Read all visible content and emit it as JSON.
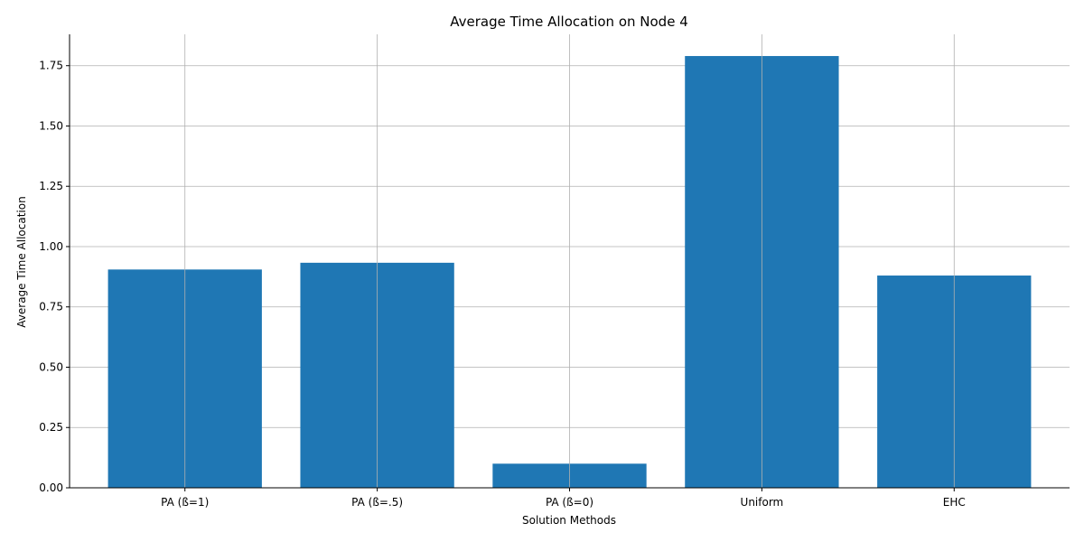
{
  "chart_data": {
    "type": "bar",
    "title": "Average Time Allocation on Node 4",
    "xlabel": "Solution Methods",
    "ylabel": "Average Time Allocation",
    "categories": [
      "PA (ß=1)",
      "PA (ß=.5)",
      "PA (ß=0)",
      "Uniform",
      "EHC"
    ],
    "values": [
      0.905,
      0.933,
      0.1,
      1.79,
      0.88
    ],
    "ylim": [
      0,
      1.88
    ],
    "yticks": [
      0.0,
      0.25,
      0.5,
      0.75,
      1.0,
      1.25,
      1.5,
      1.75
    ],
    "ytick_labels": [
      "0.00",
      "0.25",
      "0.50",
      "0.75",
      "1.00",
      "1.25",
      "1.50",
      "1.75"
    ],
    "grid": true,
    "bar_color": "#1f77b4",
    "grid_color": "#b0b0b0"
  }
}
